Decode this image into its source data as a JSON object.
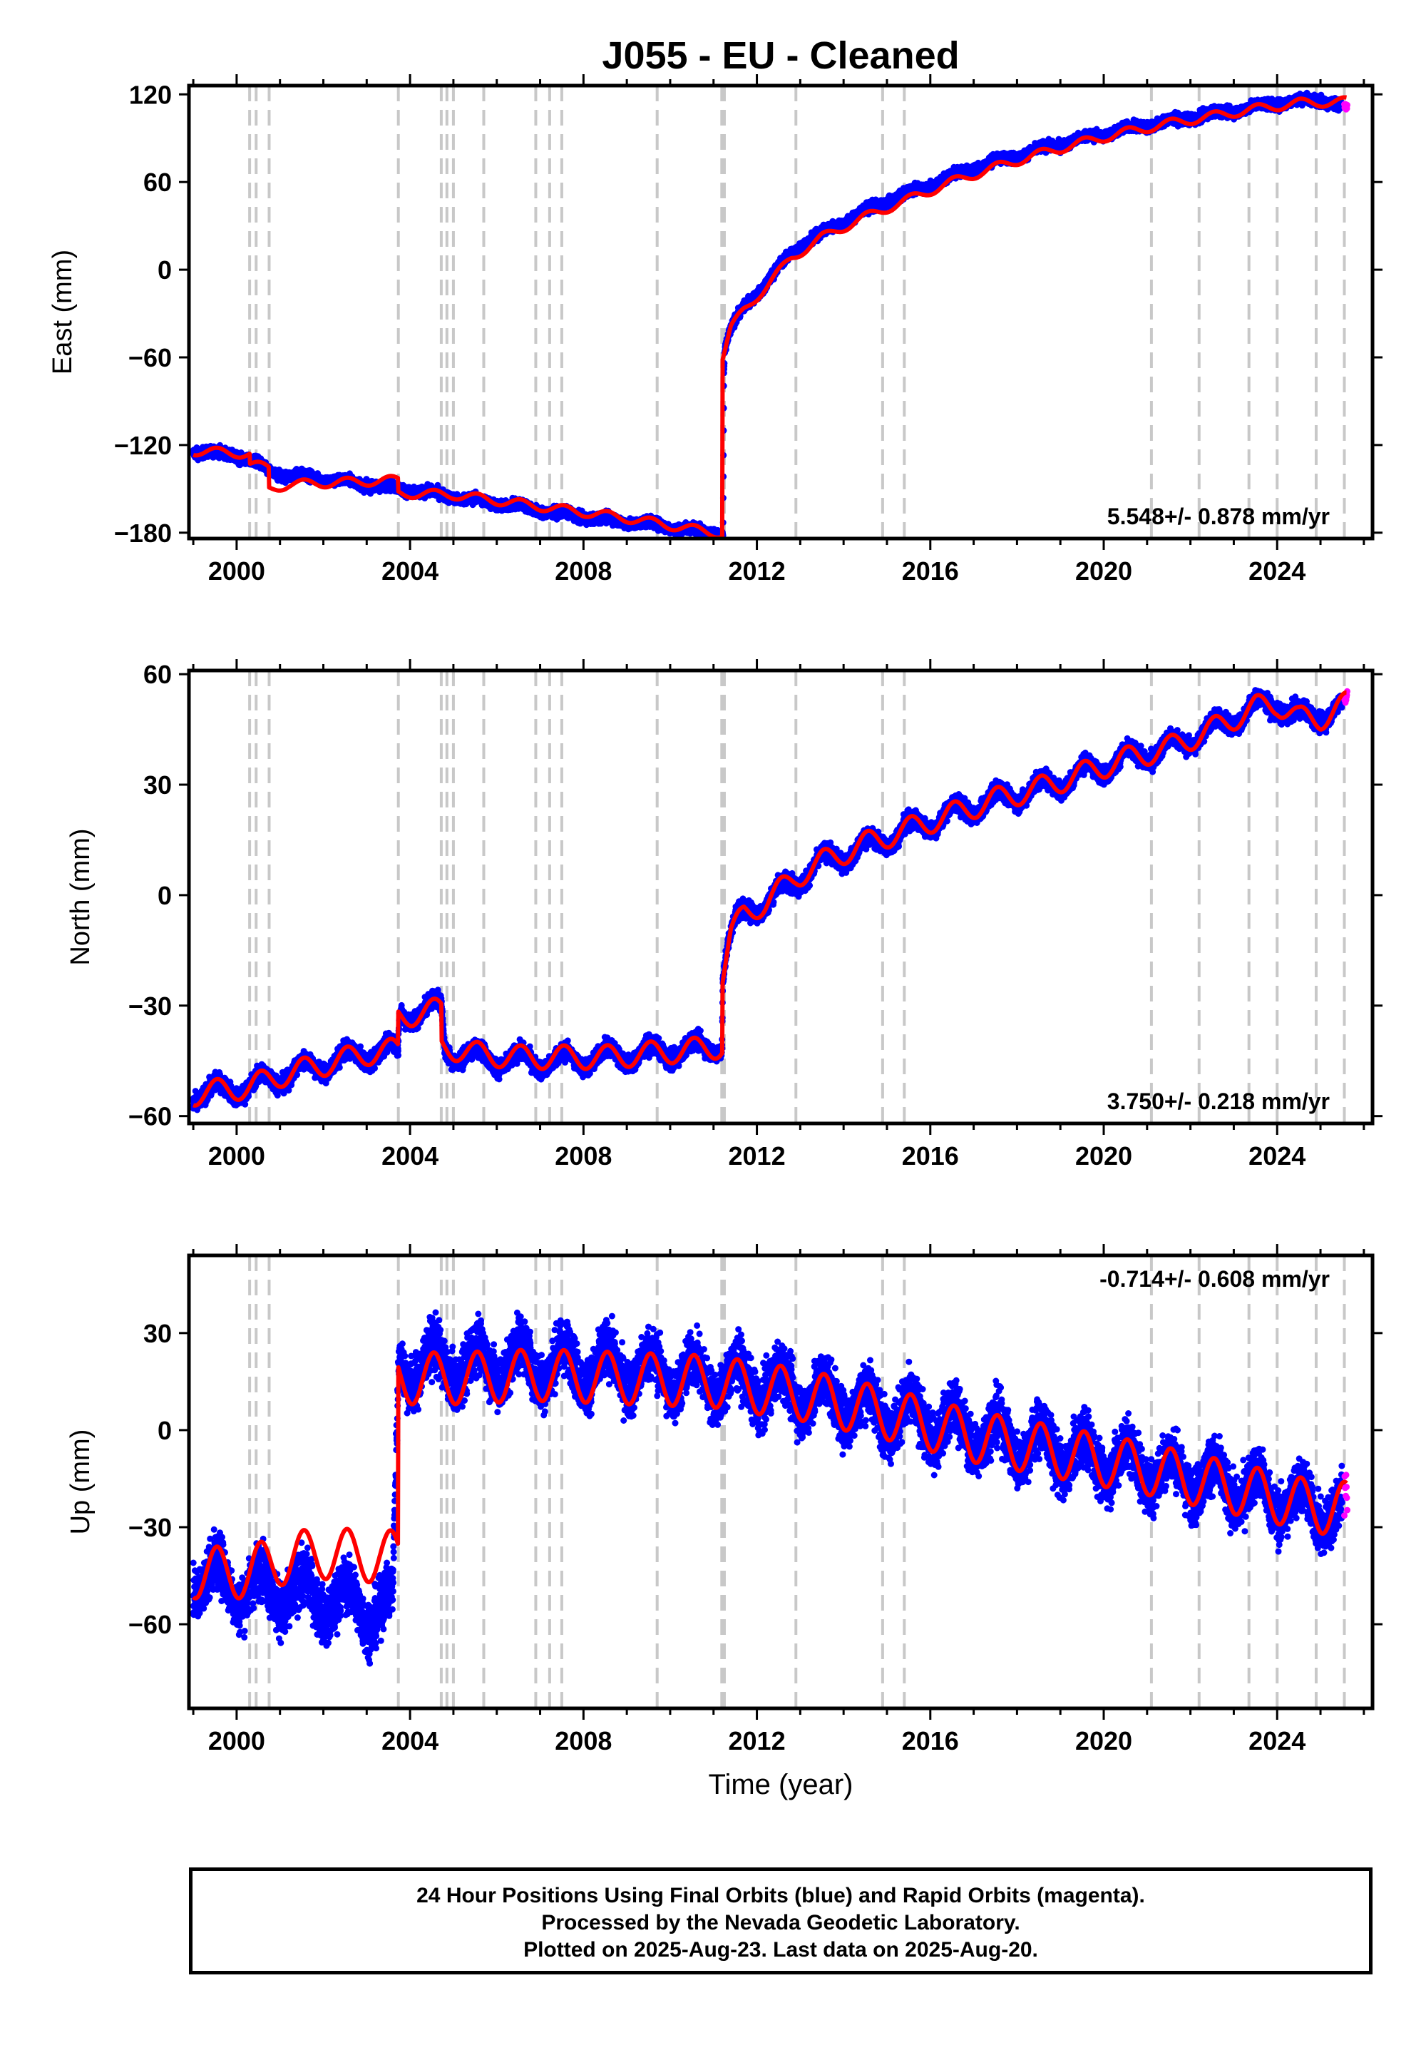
{
  "title": "J055  - EU - Cleaned",
  "xlabel": "Time (year)",
  "caption": [
    "24 Hour Positions Using Final Orbits (blue) and Rapid Orbits (magenta).",
    "Processed by the Nevada Geodetic Laboratory.",
    "Plotted on 2025-Aug-23. Last data on 2025-Aug-20."
  ],
  "colors": {
    "final": "#0000ff",
    "rapid": "#ff00ff",
    "model": "#ff0000",
    "steps": "#c8c8c8"
  },
  "chart_data": [
    {
      "type": "scatter",
      "ylabel": "East (mm)",
      "rate_label": "5.548+/- 0.878 mm/yr",
      "xlim": [
        1998.9,
        2026.2
      ],
      "ylim": [
        -184,
        126
      ],
      "yticks": [
        -180,
        -120,
        -60,
        0,
        60,
        120
      ],
      "xticks": [
        2000,
        2004,
        2008,
        2012,
        2016,
        2020,
        2024
      ],
      "step_epochs": [
        2000.3,
        2000.45,
        2000.75,
        2003.73,
        2004.72,
        2004.85,
        2005.0,
        2005.7,
        2006.9,
        2007.22,
        2007.5,
        2009.7,
        2011.19,
        2011.25,
        2012.9,
        2014.9,
        2015.4,
        2021.1,
        2022.2,
        2023.35,
        2024.0,
        2024.9,
        2025.55
      ],
      "series": [
        {
          "name": "Final Orbits",
          "x": [
            1999.0,
            2000.0,
            2000.5,
            2000.7,
            2001.0,
            2002.0,
            2003.0,
            2003.73,
            2004.5,
            2005.5,
            2006.5,
            2007.5,
            2008.5,
            2009.5,
            2010.5,
            2011.22,
            2011.24,
            2011.26,
            2011.35,
            2011.5,
            2011.8,
            2012.2,
            2012.6,
            2013.0,
            2014.0,
            2015.0,
            2016.0,
            2017.0,
            2018.0,
            2019.0,
            2020.0,
            2021.0,
            2022.0,
            2023.0,
            2024.0,
            2025.0,
            2025.5
          ],
          "y": [
            -124,
            -127,
            -133,
            -138,
            -140,
            -143,
            -147,
            -150,
            -153,
            -158,
            -162,
            -167,
            -171,
            -174,
            -178,
            -181,
            -70,
            -55,
            -45,
            -35,
            -22,
            -10,
            5,
            17,
            33,
            47,
            58,
            70,
            78,
            86,
            93,
            99,
            104,
            109,
            114,
            117,
            111
          ],
          "noise": 2.5,
          "seasonal": 1.5
        },
        {
          "name": "Rapid Orbits",
          "x": [
            2025.55,
            2025.62
          ],
          "y": [
            112,
            111
          ],
          "noise": 1.5,
          "seasonal": 0
        }
      ],
      "model": {
        "x": [
          1999.0,
          2000.3,
          2000.31,
          2000.74,
          2000.75,
          2001.2,
          2003.72,
          2003.73,
          2005.0,
          2007.0,
          2009.0,
          2011.2,
          2011.21,
          2011.4,
          2011.7,
          2012.2,
          2012.8,
          2013.5,
          2014.5,
          2015.5,
          2016.5,
          2017.5,
          2018.5,
          2019.5,
          2020.5,
          2021.5,
          2022.5,
          2023.5,
          2024.5,
          2025.6
        ],
        "y": [
          -124,
          -126,
          -133,
          -136,
          -150,
          -147,
          -144,
          -153,
          -154,
          -162,
          -170,
          -181,
          -60,
          -40,
          -28,
          -12,
          8,
          22,
          36,
          48,
          60,
          70,
          79,
          87,
          94,
          100,
          105,
          110,
          114,
          115
        ],
        "seasonal": 3
      }
    },
    {
      "type": "scatter",
      "ylabel": "North (mm)",
      "rate_label": "3.750+/- 0.218 mm/yr",
      "xlim": [
        1998.9,
        2026.2
      ],
      "ylim": [
        -62,
        61
      ],
      "yticks": [
        -60,
        -30,
        0,
        30,
        60
      ],
      "xticks": [
        2000,
        2004,
        2008,
        2012,
        2016,
        2020,
        2024
      ],
      "step_epochs": [
        2000.3,
        2000.45,
        2000.75,
        2003.73,
        2004.72,
        2004.85,
        2005.0,
        2005.7,
        2006.9,
        2007.22,
        2007.5,
        2009.7,
        2011.19,
        2011.25,
        2012.9,
        2014.9,
        2015.4,
        2021.1,
        2022.2,
        2023.35,
        2024.0,
        2024.9,
        2025.55
      ],
      "series": [
        {
          "name": "Final Orbits",
          "x": [
            1999.0,
            2000.3,
            2001.0,
            2002.0,
            2003.0,
            2003.73,
            2003.75,
            2004.4,
            2004.72,
            2004.8,
            2005.5,
            2006.5,
            2007.5,
            2008.5,
            2009.5,
            2010.5,
            2011.2,
            2011.21,
            2011.3,
            2011.5,
            2011.8,
            2012.2,
            2012.9,
            2013.5,
            2014.5,
            2015.5,
            2016.5,
            2017.5,
            2018.5,
            2019.5,
            2020.5,
            2021.5,
            2022.5,
            2023.5,
            2024.0,
            2024.5,
            2025.0,
            2025.5
          ],
          "y": [
            -54,
            -52,
            -49,
            -46,
            -43,
            -42,
            -33,
            -31,
            -30,
            -42,
            -44,
            -45,
            -45,
            -44,
            -43,
            -42,
            -40,
            -23,
            -15,
            -8,
            -4,
            -2,
            4,
            9,
            13,
            18,
            22,
            26,
            29,
            33,
            37,
            40,
            45,
            51,
            52,
            48,
            49,
            51
          ],
          "noise": 1.7,
          "seasonal": 2.5
        },
        {
          "name": "Rapid Orbits",
          "x": [
            2025.55,
            2025.62
          ],
          "y": [
            53,
            54
          ],
          "noise": 1.0,
          "seasonal": 0
        }
      ],
      "model": {
        "x": [
          1999.0,
          2000.3,
          2001.0,
          2002.0,
          2003.0,
          2003.72,
          2003.73,
          2004.72,
          2004.73,
          2005.5,
          2006.5,
          2007.5,
          2008.5,
          2009.5,
          2010.5,
          2011.2,
          2011.21,
          2011.4,
          2011.7,
          2012.2,
          2012.9,
          2013.5,
          2014.5,
          2015.5,
          2016.5,
          2017.5,
          2018.5,
          2019.5,
          2020.5,
          2021.5,
          2022.5,
          2023.5,
          2024.0,
          2024.5,
          2025.0,
          2025.6
        ],
        "y": [
          -54,
          -52,
          -49,
          -46,
          -43,
          -42,
          -33,
          -31,
          -41,
          -43,
          -44,
          -44,
          -44,
          -43,
          -42,
          -41,
          -22,
          -11,
          -5,
          -2,
          5,
          9,
          14,
          18,
          22,
          26,
          29,
          33,
          37,
          40,
          45,
          51,
          52,
          48,
          48,
          52
        ],
        "seasonal": 3.2
      }
    },
    {
      "type": "scatter",
      "ylabel": "Up (mm)",
      "rate_label": "-0.714+/- 0.608 mm/yr",
      "xlim": [
        1998.9,
        2026.2
      ],
      "ylim": [
        -86,
        54
      ],
      "yticks": [
        -60,
        -30,
        0,
        30
      ],
      "xticks": [
        2000,
        2004,
        2008,
        2012,
        2016,
        2020,
        2024
      ],
      "step_epochs": [
        2000.3,
        2000.45,
        2000.75,
        2003.73,
        2004.72,
        2004.85,
        2005.0,
        2005.7,
        2006.9,
        2007.22,
        2007.5,
        2009.7,
        2011.19,
        2011.25,
        2012.9,
        2014.9,
        2015.4,
        2021.1,
        2022.2,
        2023.35,
        2024.0,
        2024.9,
        2025.55
      ],
      "series": [
        {
          "name": "Final Orbits",
          "x": [
            1999.0,
            2000.0,
            2001.0,
            2002.0,
            2003.0,
            2003.6,
            2003.74,
            2004.5,
            2005.5,
            2006.5,
            2007.5,
            2008.5,
            2009.5,
            2010.5,
            2011.5,
            2012.5,
            2013.5,
            2014.5,
            2015.5,
            2016.5,
            2017.5,
            2018.5,
            2019.5,
            2020.5,
            2021.5,
            2022.5,
            2023.5,
            2024.5,
            2025.5
          ],
          "y": [
            -45,
            -48,
            -50,
            -52,
            -55,
            -55,
            20,
            20,
            20,
            21,
            20,
            19,
            18,
            16,
            15,
            13,
            10,
            7,
            4,
            1,
            -2,
            -5,
            -8,
            -10,
            -13,
            -16,
            -19,
            -23,
            -26
          ],
          "noise": 6,
          "seasonal": 6
        },
        {
          "name": "Rapid Orbits",
          "x": [
            2025.55,
            2025.62
          ],
          "y": [
            -20,
            -22
          ],
          "noise": 6,
          "seasonal": 0
        }
      ],
      "model": {
        "x": [
          1999.0,
          2000.3,
          2001.0,
          2002.0,
          2003.0,
          2003.72,
          2003.73,
          2005.0,
          2007.0,
          2009.0,
          2011.0,
          2013.0,
          2015.0,
          2017.0,
          2019.0,
          2021.0,
          2023.0,
          2025.0,
          2025.6
        ],
        "y": [
          -44,
          -44,
          -40,
          -38,
          -39,
          -39,
          16,
          16,
          17,
          16,
          15,
          11,
          5,
          -2,
          -7,
          -12,
          -18,
          -24,
          -24
        ],
        "seasonal": 8
      }
    }
  ]
}
